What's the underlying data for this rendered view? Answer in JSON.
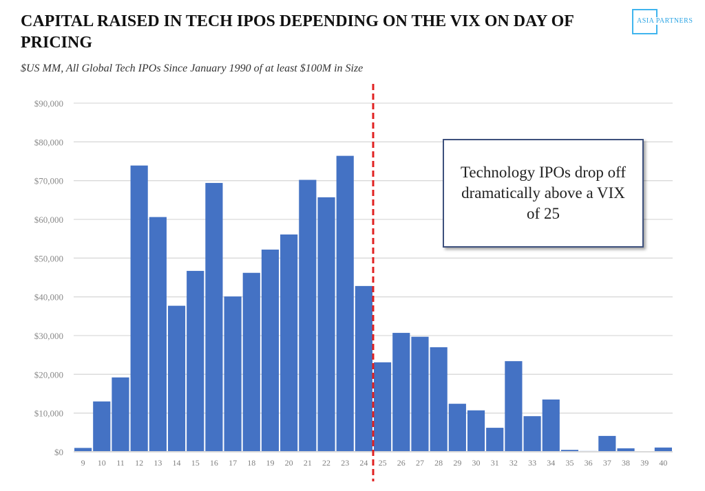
{
  "header": {
    "title": "CAPITAL RAISED IN TECH IPOS DEPENDING ON THE VIX ON DAY OF PRICING",
    "subtitle": "$US MM, All Global Tech IPOs Since January 1990 of  at least $100M in Size",
    "logo_text": "ASIA PARTNERS"
  },
  "annotation": "Technology IPOs drop off dramatically above a VIX of 25",
  "colors": {
    "bar": "#4472c4",
    "threshold_line": "#e02020",
    "grid": "#d9d9d9",
    "logo": "#3fb4ee"
  },
  "chart_data": {
    "type": "bar",
    "title": "CAPITAL RAISED IN TECH IPOS DEPENDING ON THE VIX ON DAY OF PRICING",
    "xlabel": "",
    "ylabel": "",
    "categories": [
      "9",
      "10",
      "11",
      "12",
      "13",
      "14",
      "15",
      "16",
      "17",
      "18",
      "19",
      "20",
      "21",
      "22",
      "23",
      "24",
      "25",
      "26",
      "27",
      "28",
      "29",
      "30",
      "31",
      "32",
      "33",
      "34",
      "35",
      "36",
      "37",
      "38",
      "39",
      "40"
    ],
    "values": [
      1000,
      13000,
      19200,
      73900,
      60600,
      37700,
      46700,
      69400,
      40100,
      46200,
      52200,
      56100,
      70200,
      65700,
      76400,
      42800,
      23100,
      30700,
      29700,
      27000,
      12400,
      10700,
      6200,
      23400,
      9200,
      13500,
      500,
      200,
      4100,
      900,
      0,
      1100
    ],
    "ylim": [
      0,
      90000
    ],
    "yticks": [
      0,
      10000,
      20000,
      30000,
      40000,
      50000,
      60000,
      70000,
      80000,
      90000
    ],
    "ytick_labels": [
      "$0",
      "$10,000",
      "$20,000",
      "$30,000",
      "$40,000",
      "$50,000",
      "$60,000",
      "$70,000",
      "$80,000",
      "$90,000"
    ],
    "grid": true,
    "threshold_x": 24.5,
    "threshold_style": "dashed"
  }
}
